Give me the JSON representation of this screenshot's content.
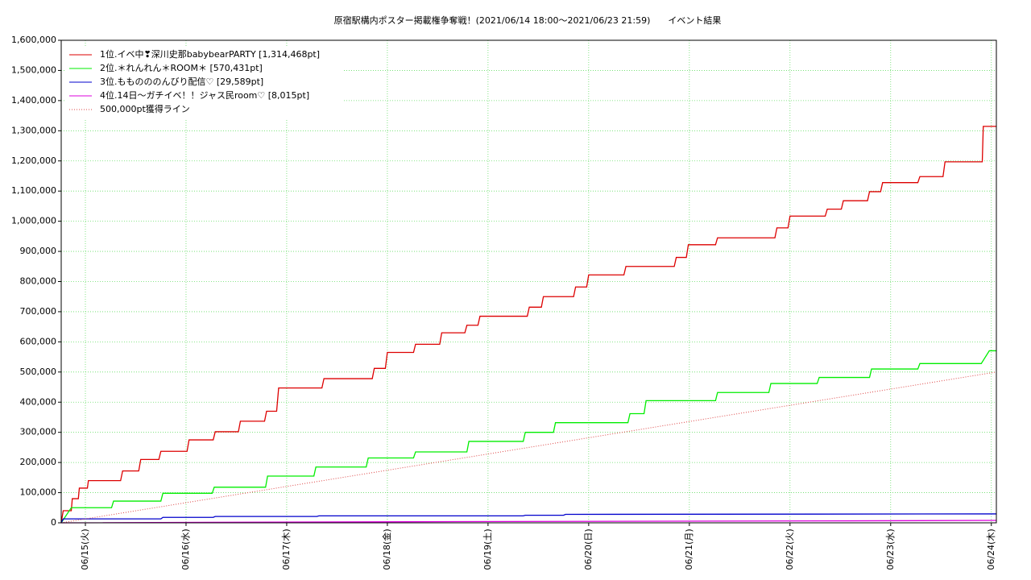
{
  "chart_data": {
    "type": "line",
    "title": "原宿駅構内ポスター掲載権争奪戦！(2021/06/14 18:00〜2021/06/23 21:59)　　イベント結果",
    "xlim": [
      0.76,
      10.05
    ],
    "xticks": [
      {
        "value": 1,
        "label": "06/15(火)"
      },
      {
        "value": 2,
        "label": "06/16(水)"
      },
      {
        "value": 3,
        "label": "06/17(木)"
      },
      {
        "value": 4,
        "label": "06/18(金)"
      },
      {
        "value": 5,
        "label": "06/19(土)"
      },
      {
        "value": 6,
        "label": "06/20(日)"
      },
      {
        "value": 7,
        "label": "06/21(月)"
      },
      {
        "value": 8,
        "label": "06/22(火)"
      },
      {
        "value": 9,
        "label": "06/23(水)"
      },
      {
        "value": 10,
        "label": "06/24(木)"
      }
    ],
    "ylim": [
      0,
      1600000
    ],
    "yticks": [
      0,
      {
        "value": 100000,
        "label": "100,000"
      },
      {
        "value": 200000,
        "label": "200,000"
      },
      {
        "value": 300000,
        "label": "300,000"
      },
      {
        "value": 400000,
        "label": "400,000"
      },
      {
        "value": 500000,
        "label": "500,000"
      },
      {
        "value": 600000,
        "label": "600,000"
      },
      {
        "value": 700000,
        "label": "700,000"
      },
      {
        "value": 800000,
        "label": "800,000"
      },
      {
        "value": 900000,
        "label": "900,000"
      },
      {
        "value": 1000000,
        "label": "1,000,000"
      },
      {
        "value": 1100000,
        "label": "1,100,000"
      },
      {
        "value": 1200000,
        "label": "1,200,000"
      },
      {
        "value": 1300000,
        "label": "1,300,000"
      },
      {
        "value": 1400000,
        "label": "1,400,000"
      },
      {
        "value": 1500000,
        "label": "1,500,000"
      },
      {
        "value": 1600000,
        "label": "1,600,000"
      }
    ],
    "grid": true,
    "grid_color": "#66dd66",
    "legend": "upper left",
    "series": [
      {
        "name": "1位.イベ中❣深川史那babybearPARTY [1,314,468pt]",
        "color": "#dd0000",
        "x": [
          0.76,
          0.78,
          0.86,
          0.87,
          0.93,
          0.94,
          1.02,
          1.03,
          1.35,
          1.37,
          1.53,
          1.55,
          1.73,
          1.75,
          2.01,
          2.03,
          2.27,
          2.29,
          2.52,
          2.54,
          2.78,
          2.8,
          2.9,
          2.92,
          3.35,
          3.37,
          3.85,
          3.87,
          3.98,
          4.0,
          4.26,
          4.28,
          4.52,
          4.54,
          4.77,
          4.79,
          4.9,
          4.92,
          5.39,
          5.41,
          5.53,
          5.55,
          5.85,
          5.87,
          5.98,
          6.0,
          6.35,
          6.37,
          6.85,
          6.87,
          6.97,
          6.99,
          7.26,
          7.28,
          7.85,
          7.87,
          7.98,
          8.0,
          8.35,
          8.37,
          8.51,
          8.53,
          8.77,
          8.79,
          8.9,
          8.92,
          9.27,
          9.29,
          9.52,
          9.54,
          9.91,
          9.92,
          10.05
        ],
        "values": [
          0,
          40000,
          40000,
          80000,
          80000,
          115000,
          115000,
          140000,
          140000,
          172000,
          172000,
          210000,
          210000,
          237000,
          237000,
          275000,
          275000,
          302000,
          302000,
          337000,
          337000,
          370000,
          370000,
          447000,
          447000,
          478000,
          478000,
          512000,
          512000,
          565000,
          565000,
          592000,
          592000,
          630000,
          630000,
          655000,
          655000,
          685000,
          685000,
          715000,
          715000,
          750000,
          750000,
          782000,
          782000,
          822000,
          822000,
          850000,
          850000,
          880000,
          880000,
          922000,
          922000,
          945000,
          945000,
          978000,
          978000,
          1017000,
          1017000,
          1040000,
          1040000,
          1068000,
          1068000,
          1098000,
          1098000,
          1128000,
          1128000,
          1148000,
          1148000,
          1197000,
          1197000,
          1314468,
          1314468
        ]
      },
      {
        "name": "2位.＊れんれん＊ROOM＊ [570,431pt]",
        "color": "#00ee00",
        "x": [
          0.76,
          0.86,
          1.26,
          1.28,
          1.75,
          1.77,
          2.26,
          2.28,
          2.79,
          2.81,
          3.27,
          3.29,
          3.79,
          3.81,
          4.26,
          4.28,
          4.79,
          4.81,
          5.35,
          5.37,
          5.65,
          5.67,
          6.39,
          6.41,
          6.55,
          6.57,
          7.26,
          7.28,
          7.79,
          7.81,
          8.27,
          8.29,
          8.79,
          8.81,
          9.27,
          9.29,
          9.9,
          9.98,
          10.05
        ],
        "values": [
          0,
          50000,
          50000,
          72000,
          72000,
          98000,
          98000,
          118000,
          118000,
          155000,
          155000,
          185000,
          185000,
          215000,
          215000,
          235000,
          235000,
          270000,
          270000,
          300000,
          300000,
          332000,
          332000,
          362000,
          362000,
          405000,
          405000,
          432000,
          432000,
          462000,
          462000,
          482000,
          482000,
          510000,
          510000,
          528000,
          528000,
          570431,
          570431
        ]
      },
      {
        "name": "3位.もものののんびり配信♡ [29,589pt]",
        "color": "#0000cc",
        "x": [
          0.76,
          0.78,
          1.75,
          1.77,
          2.27,
          2.29,
          3.3,
          3.32,
          5.35,
          5.37,
          5.75,
          5.77,
          10.05
        ],
        "values": [
          0,
          13000,
          13000,
          18000,
          18000,
          21000,
          21000,
          23000,
          23000,
          25000,
          25000,
          28000,
          29589
        ]
      },
      {
        "name": "4位.14日〜ガチイベ！！ジャス民room♡ [8,015pt]",
        "color": "#dd00dd",
        "x": [
          0.76,
          4.7,
          8.6,
          10.05
        ],
        "values": [
          0,
          4000,
          6500,
          8015
        ]
      },
      {
        "name": "500,000pt獲得ライン",
        "color": "#dd4444",
        "dash": true,
        "x": [
          0.76,
          10.05
        ],
        "values": [
          0,
          500000
        ]
      }
    ]
  }
}
